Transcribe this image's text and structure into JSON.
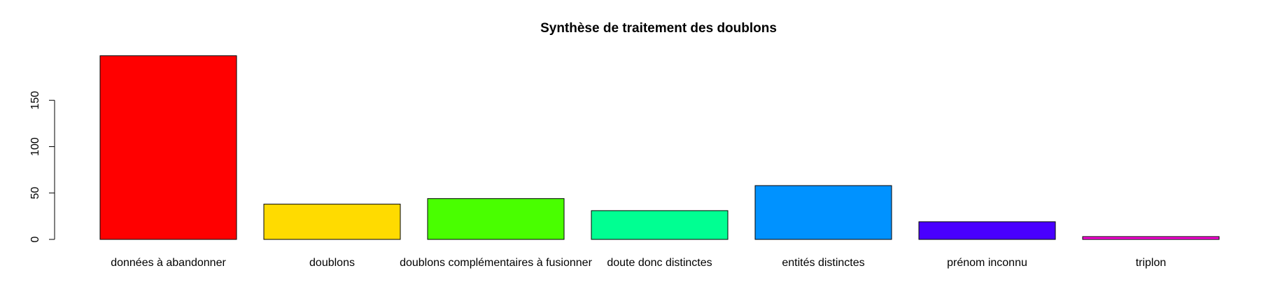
{
  "chart_data": {
    "type": "bar",
    "title": "Synthèse de traitement des doublons",
    "xlabel": "",
    "ylabel": "",
    "categories": [
      "données à abandonner",
      "doublons",
      "doublons complémentaires à fusionner",
      "doute donc distinctes",
      "entités distinctes",
      "prénom inconnu",
      "triplon"
    ],
    "values": [
      198,
      38,
      44,
      31,
      58,
      19,
      3
    ],
    "colors": [
      "#FF0000",
      "#FFDB00",
      "#49FF00",
      "#00FF92",
      "#0092FF",
      "#4900FF",
      "#FF00DB"
    ],
    "ylim": [
      0,
      200
    ],
    "yticks": [
      0,
      50,
      100,
      150
    ],
    "grid": false,
    "legend": "none"
  }
}
